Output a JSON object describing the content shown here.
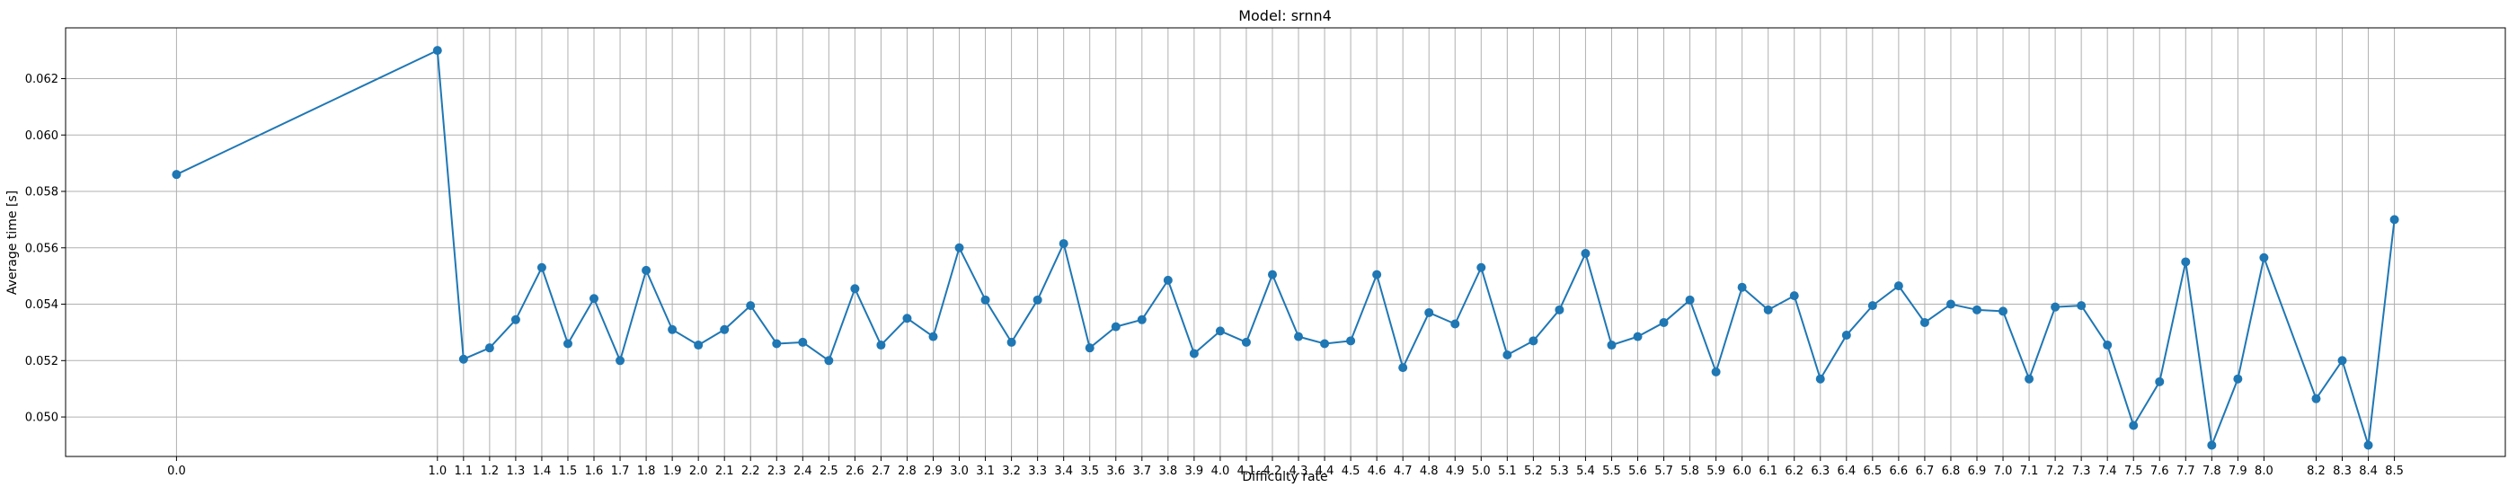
{
  "chart_data": {
    "type": "line",
    "title": "Model: srnn4",
    "xlabel": "Difficulty rate",
    "ylabel": "Average time [s]",
    "xlim": [
      -0.425,
      8.925
    ],
    "ylim": [
      0.0486,
      0.0638
    ],
    "grid": true,
    "colors": {
      "line": "#1f77b4",
      "marker": "#1f77b4",
      "grid": "#b0b0b0"
    },
    "yticks": [
      0.05,
      0.052,
      0.054,
      0.056,
      0.058,
      0.06,
      0.062
    ],
    "ytick_labels": [
      "0.050",
      "0.052",
      "0.054",
      "0.056",
      "0.058",
      "0.060",
      "0.062"
    ],
    "x": [
      0.0,
      1.0,
      1.1,
      1.2,
      1.3,
      1.4,
      1.5,
      1.6,
      1.7,
      1.8,
      1.9,
      2.0,
      2.1,
      2.2,
      2.3,
      2.4,
      2.5,
      2.6,
      2.7,
      2.8,
      2.9,
      3.0,
      3.1,
      3.2,
      3.3,
      3.4,
      3.5,
      3.6,
      3.7,
      3.8,
      3.9,
      4.0,
      4.1,
      4.2,
      4.3,
      4.4,
      4.5,
      4.6,
      4.7,
      4.8,
      4.9,
      5.0,
      5.1,
      5.2,
      5.3,
      5.4,
      5.5,
      5.6,
      5.7,
      5.8,
      5.9,
      6.0,
      6.1,
      6.2,
      6.3,
      6.4,
      6.5,
      6.6,
      6.7,
      6.8,
      6.9,
      7.0,
      7.1,
      7.2,
      7.3,
      7.4,
      7.5,
      7.6,
      7.7,
      7.8,
      7.9,
      8.0,
      8.2,
      8.3,
      8.4,
      8.5
    ],
    "xtick_labels": [
      "0.0",
      "1.0",
      "1.1",
      "1.2",
      "1.3",
      "1.4",
      "1.5",
      "1.6",
      "1.7",
      "1.8",
      "1.9",
      "2.0",
      "2.1",
      "2.2",
      "2.3",
      "2.4",
      "2.5",
      "2.6",
      "2.7",
      "2.8",
      "2.9",
      "3.0",
      "3.1",
      "3.2",
      "3.3",
      "3.4",
      "3.5",
      "3.6",
      "3.7",
      "3.8",
      "3.9",
      "4.0",
      "4.1",
      "4.2",
      "4.3",
      "4.4",
      "4.5",
      "4.6",
      "4.7",
      "4.8",
      "4.9",
      "5.0",
      "5.1",
      "5.2",
      "5.3",
      "5.4",
      "5.5",
      "5.6",
      "5.7",
      "5.8",
      "5.9",
      "6.0",
      "6.1",
      "6.2",
      "6.3",
      "6.4",
      "6.5",
      "6.6",
      "6.7",
      "6.8",
      "6.9",
      "7.0",
      "7.1",
      "7.2",
      "7.3",
      "7.4",
      "7.5",
      "7.6",
      "7.7",
      "7.8",
      "7.9",
      "8.0",
      "8.2",
      "8.3",
      "8.4",
      "8.5"
    ],
    "series": [
      {
        "values": [
          0.0586,
          0.063,
          0.05205,
          0.05245,
          0.05345,
          0.0553,
          0.0526,
          0.0542,
          0.052,
          0.0552,
          0.0531,
          0.05255,
          0.0531,
          0.05395,
          0.0526,
          0.05265,
          0.052,
          0.05455,
          0.05255,
          0.0535,
          0.05285,
          0.056,
          0.05415,
          0.05265,
          0.05415,
          0.05615,
          0.05245,
          0.0532,
          0.05345,
          0.05485,
          0.05225,
          0.05305,
          0.05265,
          0.05505,
          0.05285,
          0.0526,
          0.0527,
          0.05505,
          0.05175,
          0.0537,
          0.0533,
          0.0553,
          0.0522,
          0.0527,
          0.0538,
          0.0558,
          0.05255,
          0.05285,
          0.05335,
          0.05415,
          0.0516,
          0.0546,
          0.0538,
          0.0543,
          0.05135,
          0.0529,
          0.05395,
          0.05465,
          0.05335,
          0.054,
          0.0538,
          0.05375,
          0.05135,
          0.0539,
          0.05395,
          0.05255,
          0.0497,
          0.05125,
          0.0555,
          0.049,
          0.05135,
          0.05565,
          0.05065,
          0.052,
          0.049,
          0.057
        ]
      }
    ]
  }
}
